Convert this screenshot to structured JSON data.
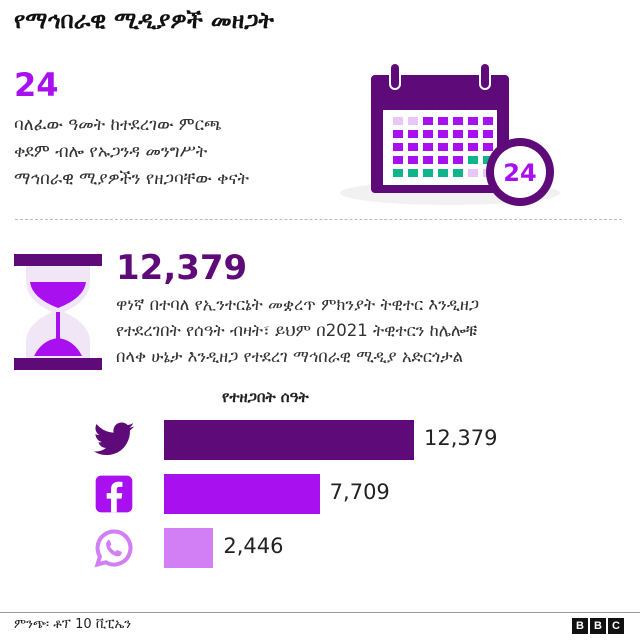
{
  "title": "የማኅበራዊ ሚዲያዎች መዘጋት",
  "stat1": {
    "value": "24",
    "lines": [
      "ባለፈው ዓመት ከተደረገው ምርጫ",
      "ቀደም ብሎ የኡጋንዳ መንግሥት",
      "ማኅበራዊ ሚያዎችን የዘጋባቸው ቀናት"
    ],
    "calendar_badge": "24",
    "icon": "calendar-icon"
  },
  "stat2": {
    "value": "12,379",
    "lines": [
      "ዋነኛ በተባለ የኢንተርኔት መቋረጥ ምክንያት ትዊተር እንዲዘጋ",
      "የተደረገበት የሰዓት ብዛት፣ ይህም በ2021 ትዊተርን ከሌሎቹ",
      "በላቀ ሁኔታ እንዲዘጋ የተደረገ ማኅበራዊ ሚዲያ አድርጎታል"
    ],
    "icon": "hourglass-icon"
  },
  "chart_data": {
    "type": "bar",
    "orientation": "horizontal",
    "title": "የተዘጋበት ሰዓት",
    "categories": [
      "Twitter",
      "Facebook",
      "WhatsApp"
    ],
    "category_icons": [
      "twitter-icon",
      "facebook-icon",
      "whatsapp-icon"
    ],
    "values": [
      12379,
      7709,
      2446
    ],
    "value_labels": [
      "12,379",
      "7,709",
      "2,446"
    ],
    "colors": [
      "#5e0a79",
      "#a910f0",
      "#d27ef5"
    ],
    "grid": false
  },
  "footer": {
    "source": "ምንጭ፡ ቶፕ 10 ቪፒኤን",
    "logo": [
      "B",
      "B",
      "C"
    ]
  },
  "colors": {
    "accent": "#a910f0",
    "dark_purple": "#5e0a79",
    "green": "#10b48a",
    "light_purple": "#e8c6f7"
  }
}
